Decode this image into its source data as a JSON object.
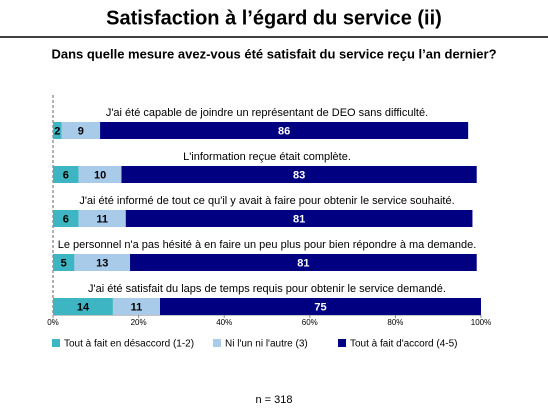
{
  "chart_data": {
    "type": "stacked-bar-horizontal",
    "title": "Satisfaction à l’égard du service (ii)",
    "subtitle": "Dans quelle mesure avez-vous été satisfait du service reçu l’an dernier?",
    "categories": [
      "J'ai été capable de joindre un représentant de DEO sans difficulté.",
      "L'information reçue était complète.",
      "J'ai été informé de tout ce qu'il y avait à faire pour obtenir le service souhaité.",
      "Le personnel n'a pas hésité à en faire un peu plus pour bien répondre à ma demande.",
      "J'ai été satisfait du laps de temps requis pour obtenir le service demandé."
    ],
    "series": [
      {
        "name": "Tout à fait en désaccord (1-2)",
        "color": "#3db5c2",
        "label_color": "#000000",
        "values": [
          2,
          6,
          6,
          5,
          14
        ]
      },
      {
        "name": "Ni l'un ni l'autre (3)",
        "color": "#a9cbea",
        "label_color": "#000000",
        "values": [
          9,
          10,
          11,
          13,
          11
        ]
      },
      {
        "name": "Tout à fait d'accord (4-5)",
        "color": "#000080",
        "label_color": "#ffffff",
        "values": [
          86,
          83,
          81,
          81,
          75
        ]
      }
    ],
    "xlim": [
      0,
      100
    ],
    "xticks": [
      {
        "value": 0,
        "label": "0%"
      },
      {
        "value": 20,
        "label": "20%"
      },
      {
        "value": 40,
        "label": "40%"
      },
      {
        "value": 60,
        "label": "60%"
      },
      {
        "value": 80,
        "label": "80%"
      },
      {
        "value": 100,
        "label": "100%"
      }
    ],
    "legend": "bottom",
    "annotation": "n = 318"
  }
}
